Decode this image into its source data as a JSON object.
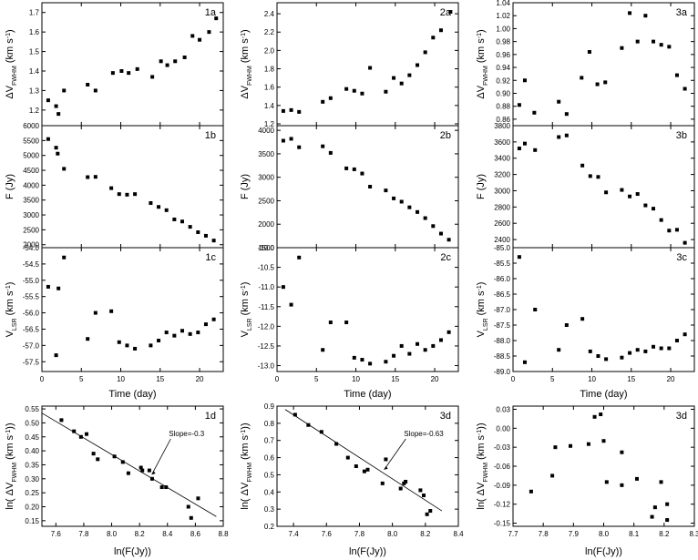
{
  "chart_data": [
    {
      "id": "1a",
      "label": "1a",
      "type": "scatter",
      "ylabel": "ΔV_FWHM (km s^-1)",
      "xlim": [
        0,
        23
      ],
      "ylim": [
        1.12,
        1.75
      ],
      "yticks": [
        1.2,
        1.3,
        1.4,
        1.5,
        1.6,
        1.7
      ],
      "x": [
        0.8,
        1.8,
        2.1,
        2.8,
        5.8,
        6.8,
        9.0,
        10.1,
        11.0,
        12.1,
        14.0,
        15.1,
        15.9,
        16.9,
        18.1,
        19.1,
        20.0,
        21.2,
        22.1
      ],
      "y": [
        1.25,
        1.22,
        1.18,
        1.3,
        1.33,
        1.3,
        1.39,
        1.4,
        1.39,
        1.41,
        1.37,
        1.45,
        1.43,
        1.45,
        1.47,
        1.58,
        1.56,
        1.6,
        1.67
      ]
    },
    {
      "id": "2a",
      "label": "2a",
      "type": "scatter",
      "ylabel": "ΔV_FWHM (km s^-1)",
      "xlim": [
        0,
        23
      ],
      "ylim": [
        1.18,
        2.52
      ],
      "yticks": [
        1.2,
        1.4,
        1.6,
        1.8,
        2.0,
        2.2,
        2.4
      ],
      "x": [
        0.8,
        1.8,
        2.8,
        5.8,
        6.8,
        8.8,
        9.8,
        10.8,
        11.8,
        13.8,
        14.8,
        15.8,
        16.8,
        17.8,
        18.8,
        19.8,
        20.8,
        22.0
      ],
      "y": [
        1.34,
        1.35,
        1.33,
        1.44,
        1.48,
        1.58,
        1.56,
        1.53,
        1.81,
        1.55,
        1.7,
        1.64,
        1.73,
        1.84,
        1.98,
        2.14,
        2.22,
        2.42
      ]
    },
    {
      "id": "3a",
      "label": "3a",
      "type": "scatter",
      "ylabel": "ΔV_FWHM (km s^-1)",
      "xlim": [
        0,
        23
      ],
      "ylim": [
        0.85,
        1.04
      ],
      "yticks": [
        0.86,
        0.88,
        0.9,
        0.92,
        0.94,
        0.96,
        0.98,
        1.0,
        1.02,
        1.04
      ],
      "x": [
        0.8,
        1.5,
        2.7,
        5.8,
        6.8,
        8.7,
        9.7,
        10.7,
        11.7,
        13.8,
        14.8,
        15.8,
        16.8,
        17.8,
        18.8,
        19.8,
        20.8,
        21.8
      ],
      "y": [
        0.882,
        0.92,
        0.87,
        0.887,
        0.868,
        0.924,
        0.964,
        0.914,
        0.917,
        0.97,
        1.024,
        0.98,
        1.02,
        0.98,
        0.975,
        0.972,
        0.928,
        0.907
      ]
    },
    {
      "id": "1b",
      "label": "1b",
      "type": "scatter",
      "ylabel": "F (Jy)",
      "xlim": [
        0,
        23
      ],
      "ylim": [
        1900,
        6000
      ],
      "yticks": [
        2000,
        2500,
        3000,
        3500,
        4000,
        4500,
        5000,
        5500,
        6000
      ],
      "x": [
        0.8,
        1.8,
        2.0,
        2.8,
        5.8,
        6.8,
        8.8,
        9.8,
        10.8,
        11.8,
        13.8,
        14.8,
        15.8,
        16.8,
        17.8,
        18.8,
        19.8,
        20.8,
        21.8
      ],
      "y": [
        5550,
        5260,
        5060,
        4550,
        4270,
        4280,
        3900,
        3700,
        3680,
        3700,
        3400,
        3270,
        3160,
        2850,
        2780,
        2600,
        2420,
        2300,
        2140
      ]
    },
    {
      "id": "2b",
      "label": "2b",
      "type": "scatter",
      "ylabel": "F (Jy)",
      "xlim": [
        0,
        23
      ],
      "ylim": [
        1500,
        4100
      ],
      "yticks": [
        1500,
        2000,
        2500,
        3000,
        3500,
        4000
      ],
      "x": [
        0.8,
        1.8,
        2.8,
        5.8,
        6.8,
        8.8,
        9.8,
        10.8,
        11.8,
        13.8,
        14.8,
        15.8,
        16.8,
        17.8,
        18.8,
        19.8,
        20.8,
        21.8
      ],
      "y": [
        3780,
        3820,
        3640,
        3660,
        3520,
        3190,
        3170,
        3080,
        2800,
        2720,
        2550,
        2480,
        2360,
        2260,
        2130,
        1960,
        1800,
        1670
      ]
    },
    {
      "id": "3b",
      "label": "3b",
      "type": "scatter",
      "ylabel": "F (Jy)",
      "xlim": [
        0,
        23
      ],
      "ylim": [
        2300,
        3800
      ],
      "yticks": [
        2400,
        2600,
        2800,
        3000,
        3200,
        3400,
        3600,
        3800
      ],
      "x": [
        0.8,
        1.5,
        2.8,
        5.8,
        6.8,
        8.8,
        9.8,
        10.8,
        11.8,
        13.8,
        14.8,
        15.8,
        16.8,
        17.8,
        18.8,
        19.8,
        20.8,
        21.8
      ],
      "y": [
        3520,
        3580,
        3500,
        3660,
        3680,
        3310,
        3180,
        3170,
        2980,
        3010,
        2930,
        2960,
        2820,
        2780,
        2640,
        2510,
        2520,
        2360
      ]
    },
    {
      "id": "1c",
      "label": "1c",
      "type": "scatter",
      "ylabel": "V_LSR (km s^-1)",
      "xlim": [
        0,
        23
      ],
      "ylim": [
        -57.8,
        -54.0
      ],
      "yticks": [
        -54.0,
        -54.5,
        -55.0,
        -55.5,
        -56.0,
        -56.5,
        -57.0,
        -57.5
      ],
      "x": [
        0.8,
        1.8,
        2.1,
        2.8,
        5.8,
        6.8,
        8.8,
        9.8,
        10.8,
        11.8,
        13.8,
        14.8,
        15.8,
        16.8,
        17.8,
        18.8,
        19.8,
        20.8,
        21.8
      ],
      "y": [
        -55.2,
        -57.3,
        -55.25,
        -54.3,
        -56.8,
        -56.0,
        -55.95,
        -56.9,
        -57.0,
        -57.1,
        -57.0,
        -56.85,
        -56.6,
        -56.7,
        -56.55,
        -56.65,
        -56.6,
        -56.35,
        -56.2
      ]
    },
    {
      "id": "2c",
      "label": "2c",
      "type": "scatter",
      "ylabel": "V_LSR (km s^-1)",
      "xlim": [
        0,
        23
      ],
      "ylim": [
        -13.15,
        -10.0
      ],
      "yticks": [
        -10.0,
        -10.5,
        -11.0,
        -11.5,
        -12.0,
        -12.5,
        -13.0
      ],
      "x": [
        0.8,
        1.8,
        2.8,
        5.8,
        6.8,
        8.8,
        9.8,
        10.8,
        11.8,
        13.8,
        14.8,
        15.8,
        16.8,
        17.8,
        18.8,
        19.8,
        20.8,
        21.8
      ],
      "y": [
        -11.0,
        -11.45,
        -10.25,
        -12.6,
        -11.9,
        -11.9,
        -12.8,
        -12.85,
        -12.95,
        -12.9,
        -12.75,
        -12.5,
        -12.7,
        -12.45,
        -12.6,
        -12.5,
        -12.35,
        -12.15
      ]
    },
    {
      "id": "3c",
      "label": "3c",
      "type": "scatter",
      "ylabel": "V_LSR (km s^-1)",
      "xlim": [
        0,
        23
      ],
      "ylim": [
        -89.0,
        -85.0
      ],
      "yticks": [
        -85.0,
        -85.5,
        -86.0,
        -86.5,
        -87.0,
        -87.5,
        -88.0,
        -88.5,
        -89.0
      ],
      "x": [
        0.8,
        1.5,
        2.8,
        5.8,
        6.8,
        8.8,
        9.8,
        10.8,
        11.8,
        13.8,
        14.8,
        15.8,
        16.8,
        17.8,
        18.8,
        19.8,
        20.8,
        21.8
      ],
      "y": [
        -85.3,
        -88.7,
        -87.0,
        -88.3,
        -87.5,
        -87.3,
        -88.35,
        -88.5,
        -88.6,
        -88.55,
        -88.4,
        -88.3,
        -88.35,
        -88.2,
        -88.25,
        -88.25,
        -88.0,
        -87.8
      ]
    },
    {
      "id": "1d",
      "label": "1d",
      "type": "scatter",
      "ylabel": "ln( ΔV_FWHM (km s^-1))",
      "xlabel": "ln(F(Jy))",
      "xlim": [
        7.5,
        8.8
      ],
      "ylim": [
        0.13,
        0.56
      ],
      "xticks": [
        7.6,
        7.8,
        8.0,
        8.2,
        8.4,
        8.6,
        8.8
      ],
      "yticks": [
        0.15,
        0.2,
        0.25,
        0.3,
        0.35,
        0.4,
        0.45,
        0.5,
        0.55
      ],
      "x": [
        7.64,
        7.73,
        7.78,
        7.82,
        7.87,
        7.9,
        8.02,
        8.08,
        8.12,
        8.21,
        8.22,
        8.27,
        8.29,
        8.36,
        8.39,
        8.55,
        8.57,
        8.62
      ],
      "y": [
        0.51,
        0.47,
        0.45,
        0.46,
        0.39,
        0.37,
        0.38,
        0.36,
        0.32,
        0.34,
        0.33,
        0.33,
        0.3,
        0.27,
        0.27,
        0.2,
        0.16,
        0.23
      ],
      "fit": {
        "x": [
          7.5,
          8.75
        ],
        "y": [
          0.535,
          0.165
        ]
      },
      "annotation": "Slope=-0.3"
    },
    {
      "id": "3d_mid",
      "label": "3d",
      "type": "scatter",
      "ylabel": "ln( ΔV_FWHM (km s^-1))",
      "xlabel": "ln(F(Jy))",
      "xlim": [
        7.3,
        8.4
      ],
      "ylim": [
        0.2,
        0.9
      ],
      "xticks": [
        7.4,
        7.6,
        7.8,
        8.0,
        8.2,
        8.4
      ],
      "yticks": [
        0.2,
        0.3,
        0.4,
        0.5,
        0.6,
        0.7,
        0.8,
        0.9
      ],
      "x": [
        7.41,
        7.49,
        7.57,
        7.66,
        7.73,
        7.78,
        7.83,
        7.85,
        7.94,
        7.96,
        8.05,
        8.07,
        8.08,
        8.17,
        8.19,
        8.21,
        8.23
      ],
      "y": [
        0.85,
        0.79,
        0.75,
        0.68,
        0.6,
        0.55,
        0.52,
        0.53,
        0.45,
        0.59,
        0.42,
        0.45,
        0.46,
        0.41,
        0.38,
        0.27,
        0.29
      ],
      "fit": {
        "x": [
          7.35,
          8.3
        ],
        "y": [
          0.88,
          0.29
        ]
      },
      "annotation": "Slope=-0.63"
    },
    {
      "id": "3d_right",
      "label": "3d",
      "type": "scatter",
      "ylabel": "ln( ΔV_FWHM (km s^-1))",
      "xlabel": "ln(F(Jy))",
      "xlim": [
        7.7,
        8.3
      ],
      "ylim": [
        -0.155,
        0.035
      ],
      "xticks": [
        7.7,
        7.8,
        7.9,
        8.0,
        8.1,
        8.2,
        8.3
      ],
      "yticks": [
        0.03,
        0.0,
        -0.03,
        -0.06,
        -0.09,
        -0.12,
        -0.15
      ],
      "x": [
        7.76,
        7.83,
        7.84,
        7.89,
        7.95,
        7.97,
        7.99,
        8.0,
        8.01,
        8.06,
        8.06,
        8.11,
        8.16,
        8.17,
        8.19,
        8.21,
        8.21
      ],
      "y": [
        -0.1,
        -0.075,
        -0.03,
        -0.028,
        -0.025,
        0.018,
        0.022,
        -0.02,
        -0.085,
        -0.038,
        -0.09,
        -0.08,
        -0.14,
        -0.125,
        -0.085,
        -0.12,
        -0.145
      ]
    }
  ],
  "shared": {
    "time_xlabel": "Time (day)",
    "time_xticks": [
      0,
      5,
      10,
      15,
      20
    ]
  }
}
